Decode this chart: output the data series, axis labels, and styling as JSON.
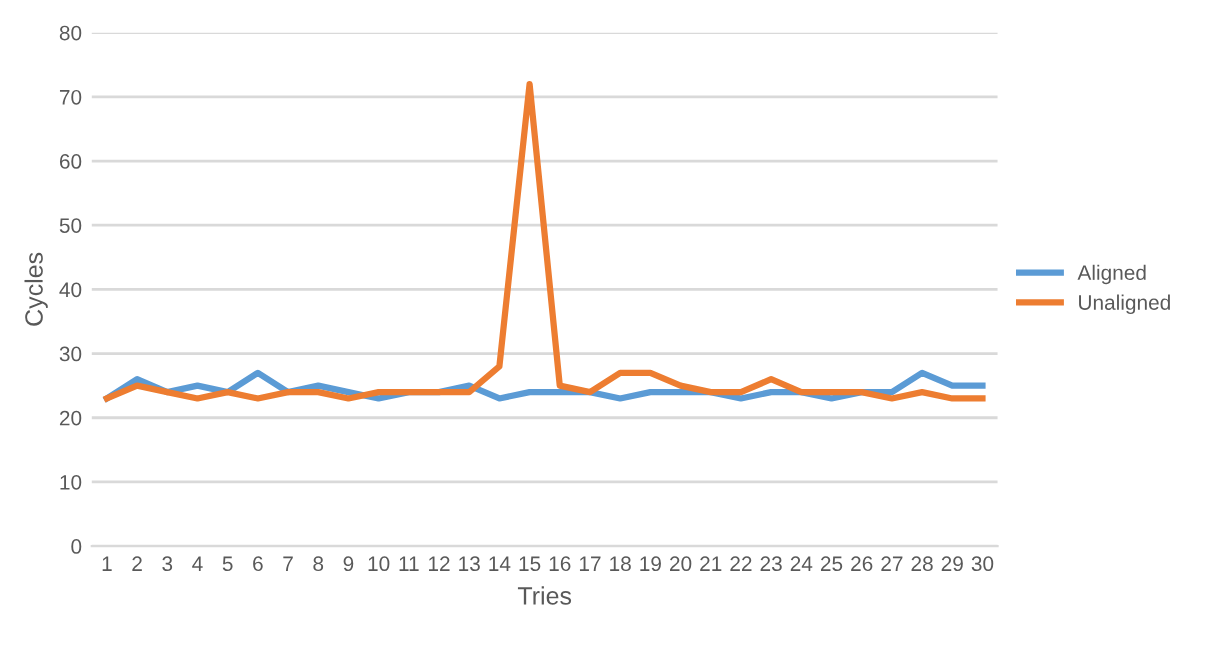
{
  "chart_data": {
    "type": "line",
    "xlabel": "Tries",
    "ylabel": "Cycles",
    "categories": [
      "1",
      "2",
      "3",
      "4",
      "5",
      "6",
      "7",
      "8",
      "9",
      "10",
      "11",
      "12",
      "13",
      "14",
      "15",
      "16",
      "17",
      "18",
      "19",
      "20",
      "21",
      "22",
      "23",
      "24",
      "25",
      "26",
      "27",
      "28",
      "29",
      "30"
    ],
    "series": [
      {
        "name": "Aligned",
        "color": "#5b9bd5",
        "values": [
          23,
          26,
          24,
          25,
          24,
          27,
          24,
          25,
          24,
          23,
          24,
          24,
          25,
          23,
          24,
          24,
          24,
          23,
          24,
          24,
          24,
          23,
          24,
          24,
          23,
          24,
          24,
          27,
          25,
          25
        ]
      },
      {
        "name": "Unaligned",
        "color": "#ed7d31",
        "values": [
          23,
          25,
          24,
          23,
          24,
          23,
          24,
          24,
          23,
          24,
          24,
          24,
          24,
          28,
          72,
          25,
          24,
          27,
          27,
          25,
          24,
          24,
          26,
          24,
          24,
          24,
          23,
          24,
          23,
          23
        ]
      }
    ],
    "ylim": [
      0,
      80
    ],
    "yticks": [
      0,
      10,
      20,
      30,
      40,
      50,
      60,
      70,
      80
    ],
    "grid": "y",
    "legend": "right",
    "marker": "none",
    "line_style": "solid"
  }
}
